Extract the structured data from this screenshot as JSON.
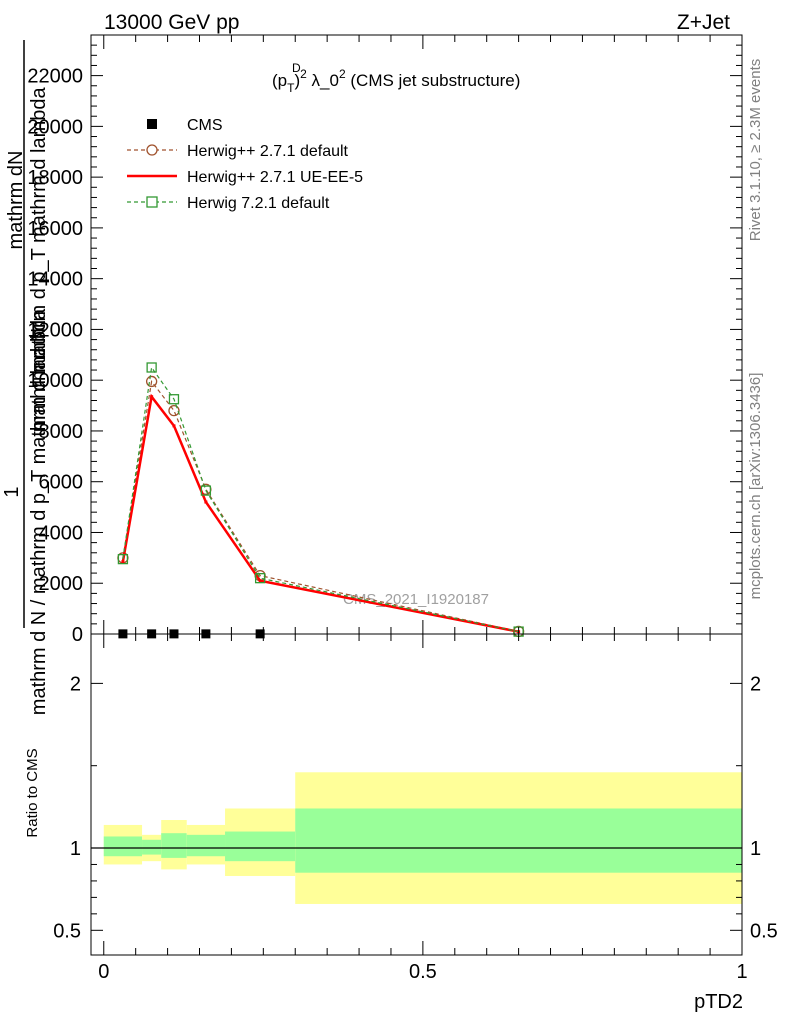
{
  "header": {
    "left": "13000 GeV pp",
    "right": "Z+Jet"
  },
  "side_labels": {
    "rivet": "Rivet 3.1.10, ≥ 2.3M events",
    "mcplots": "mcplots.cern.ch [arXiv:1306.3436]"
  },
  "watermark": "CMS_2021_I1920187",
  "colors": {
    "cms": "#000000",
    "herwig_pp_default": "#a0522d",
    "herwig_pp_ueee5": "#ff0000",
    "herwig_721": "#339933",
    "band_inner": "#99ff99",
    "band_outer": "#ffff99"
  },
  "chart_data": [
    {
      "type": "line",
      "title": "(p_T^D)^2 λ_0^2 (CMS jet substructure)",
      "title_parts": {
        "p": "(p",
        "sub": "T",
        "sup": "D",
        "close": ")",
        "sq": "2",
        "lam": " λ_0",
        "sq2": "2",
        "rest": " (CMS jet substructure)"
      },
      "ylabel_lines": [
        "mathrm d N",
        "mathrm dN",
        "mathrm d p_T mathrm d lambda",
        "1",
        "mathrm d N / mathrm d p_T mathrm d lambda"
      ],
      "ylim": [
        0,
        23600
      ],
      "xlim": [
        -0.02,
        1.0
      ],
      "y_ticks": [
        0,
        2000,
        4000,
        6000,
        8000,
        10000,
        12000,
        14000,
        16000,
        18000,
        20000,
        22000
      ],
      "y_tick_labels": [
        "0",
        "2000",
        "4000",
        "6000",
        "8000",
        "10000",
        "12000",
        "14000",
        "16000",
        "18000",
        "20000",
        "22000"
      ],
      "legend_position": "top-left",
      "series": [
        {
          "name": "CMS",
          "key": "cms",
          "style": "marker-square",
          "x": [
            0.03,
            0.075,
            0.11,
            0.16,
            0.245
          ],
          "y": [
            5,
            5,
            5,
            5,
            5
          ]
        },
        {
          "name": "Herwig++ 2.7.1 default",
          "key": "herwig_pp_default",
          "style": "dashed-circle",
          "x": [
            0.03,
            0.075,
            0.11,
            0.16,
            0.245,
            0.65
          ],
          "y": [
            3000,
            9950,
            8800,
            5700,
            2300,
            100
          ]
        },
        {
          "name": "Herwig++ 2.7.1 UE-EE-5",
          "key": "herwig_pp_ueee5",
          "style": "solid",
          "x": [
            0.03,
            0.075,
            0.11,
            0.16,
            0.245,
            0.65
          ],
          "y": [
            2850,
            9350,
            8200,
            5200,
            2100,
            90
          ]
        },
        {
          "name": "Herwig 7.2.1 default",
          "key": "herwig_721",
          "style": "dashed-square",
          "x": [
            0.03,
            0.075,
            0.11,
            0.16,
            0.245,
            0.65
          ],
          "y": [
            2950,
            10500,
            9250,
            5650,
            2200,
            95
          ]
        }
      ]
    },
    {
      "type": "area",
      "ylabel": "Ratio to CMS",
      "xlabel": "pTD2",
      "ylim": [
        0.35,
        2.3
      ],
      "xlim": [
        -0.02,
        1.0
      ],
      "y_ticks": [
        0.5,
        1,
        2
      ],
      "y_tick_labels": [
        "0.5",
        "1",
        "2"
      ],
      "x_ticks": [
        0,
        0.5,
        1
      ],
      "x_tick_labels": [
        "0",
        "0.5",
        "1"
      ],
      "reference_line": 1,
      "bands": [
        {
          "x0": 0.0,
          "x1": 0.06,
          "inner": [
            0.95,
            1.07
          ],
          "outer": [
            0.9,
            1.14
          ]
        },
        {
          "x0": 0.06,
          "x1": 0.09,
          "inner": [
            0.96,
            1.05
          ],
          "outer": [
            0.92,
            1.08
          ]
        },
        {
          "x0": 0.09,
          "x1": 0.13,
          "inner": [
            0.94,
            1.09
          ],
          "outer": [
            0.87,
            1.17
          ]
        },
        {
          "x0": 0.13,
          "x1": 0.19,
          "inner": [
            0.95,
            1.08
          ],
          "outer": [
            0.9,
            1.14
          ]
        },
        {
          "x0": 0.19,
          "x1": 0.3,
          "inner": [
            0.92,
            1.1
          ],
          "outer": [
            0.83,
            1.24
          ]
        },
        {
          "x0": 0.3,
          "x1": 1.0,
          "inner": [
            0.85,
            1.24
          ],
          "outer": [
            0.66,
            1.46
          ]
        }
      ]
    }
  ]
}
